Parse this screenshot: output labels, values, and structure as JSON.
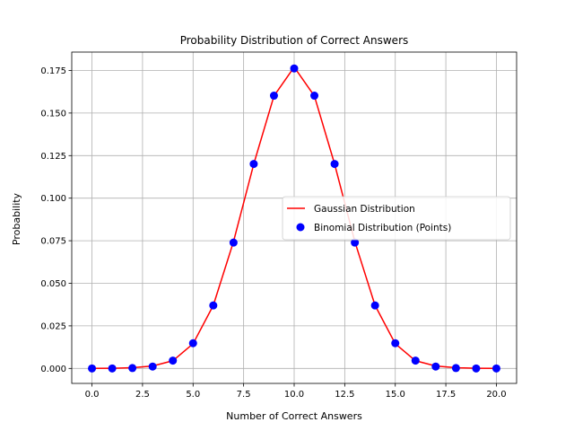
{
  "chart_data": {
    "type": "line",
    "title": "Probability Distribution of Correct Answers",
    "xlabel": "Number of Correct Answers",
    "ylabel": "Probability",
    "xlim": [
      -1,
      21
    ],
    "ylim": [
      -0.0088,
      0.1858
    ],
    "x_ticks": [
      0,
      2.5,
      5,
      7.5,
      10,
      12.5,
      15,
      17.5,
      20
    ],
    "x_tick_labels": [
      "0.0",
      "2.5",
      "5.0",
      "7.5",
      "10.0",
      "12.5",
      "15.0",
      "17.5",
      "20.0"
    ],
    "y_ticks": [
      0,
      0.025,
      0.05,
      0.075,
      0.1,
      0.125,
      0.15,
      0.175
    ],
    "y_tick_labels": [
      "0.000",
      "0.025",
      "0.050",
      "0.075",
      "0.100",
      "0.125",
      "0.150",
      "0.175"
    ],
    "grid": true,
    "legend_position": "center-right",
    "x": [
      0,
      1,
      2,
      3,
      4,
      5,
      6,
      7,
      8,
      9,
      10,
      11,
      12,
      13,
      14,
      15,
      16,
      17,
      18,
      19,
      20
    ],
    "series": [
      {
        "name": "Gaussian Distribution",
        "kind": "line",
        "color": "#ff0000",
        "values": [
          0.0,
          0.0001,
          0.0004,
          0.0014,
          0.0045,
          0.0145,
          0.037,
          0.0745,
          0.12,
          0.16,
          0.177,
          0.16,
          0.12,
          0.0745,
          0.037,
          0.0145,
          0.0045,
          0.0014,
          0.0004,
          0.0001,
          0.0
        ]
      },
      {
        "name": "Binomial Distribution (Points)",
        "kind": "scatter",
        "color": "#0000ff",
        "values": [
          0.0,
          0.0,
          0.0002,
          0.0011,
          0.0046,
          0.0148,
          0.037,
          0.0739,
          0.1201,
          0.1602,
          0.1762,
          0.1602,
          0.1201,
          0.0739,
          0.037,
          0.0148,
          0.0046,
          0.0011,
          0.0002,
          0.0,
          0.0
        ]
      }
    ]
  }
}
